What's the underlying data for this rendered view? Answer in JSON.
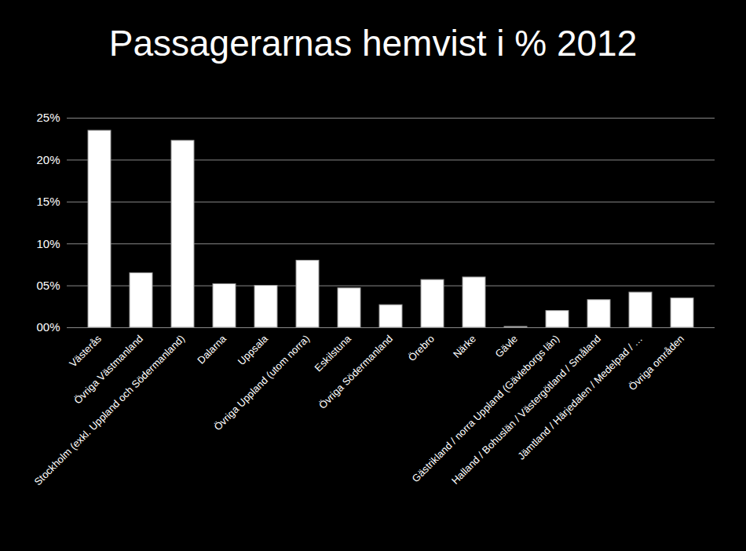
{
  "chart_data": {
    "type": "bar",
    "title": "Passagerarnas hemvist i % 2012",
    "categories": [
      "Västerås",
      "Övriga Västmanland",
      "Stockholm (exkl. Uppland och Södermanland)",
      "Dalarna",
      "Uppsala",
      "Övriga Uppland (utom norra)",
      "Eskilstuna",
      "Övriga Södermanland",
      "Örebro",
      "Närke",
      "Gävle",
      "Gästrikland / norra Uppland (Gävleborgs län)",
      "Halland / Bohuslän / Västergötland / Småland",
      "Jämtland / Härjedalen / Medelpad / …",
      "Övriga områden"
    ],
    "values": [
      23.5,
      6.5,
      22.3,
      5.2,
      5.0,
      8.0,
      4.7,
      2.7,
      5.7,
      6.0,
      0.1,
      2.0,
      3.3,
      4.2,
      3.5
    ],
    "color": "#ffffff",
    "ylim": [
      0,
      25
    ],
    "yticks": [
      {
        "value": 0,
        "label": "00%"
      },
      {
        "value": 5,
        "label": "05%"
      },
      {
        "value": 10,
        "label": "10%"
      },
      {
        "value": 15,
        "label": "15%"
      },
      {
        "value": 20,
        "label": "20%"
      },
      {
        "value": 25,
        "label": "25%"
      }
    ],
    "grid": true
  }
}
